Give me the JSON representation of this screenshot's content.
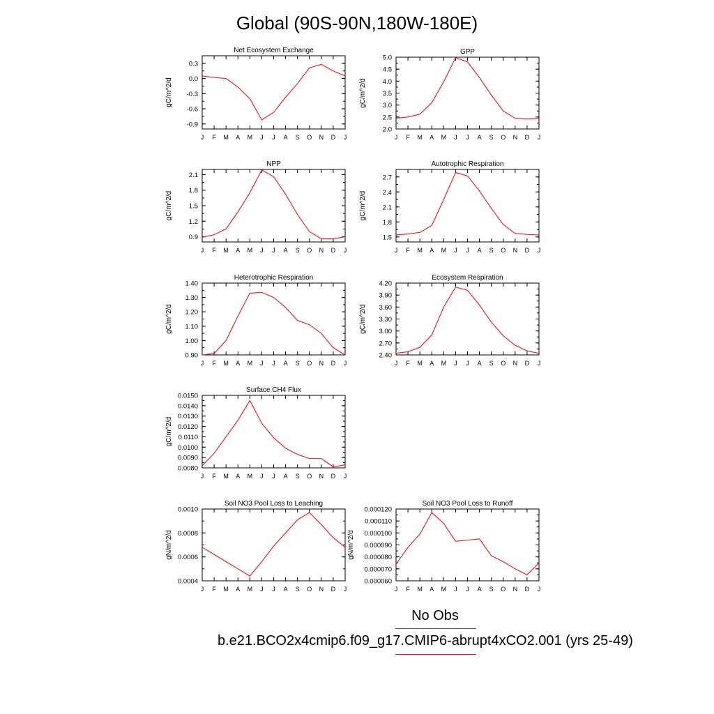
{
  "page": {
    "title": "Global (90S-90N,180W-180E)"
  },
  "legend": {
    "items": [
      {
        "label": "No Obs",
        "color": "#4444ee"
      },
      {
        "label": "b.e21.BCO2x4cmip6.f09_g17.CMIP6-abrupt4xCO2.001 (yrs 25-49)",
        "color": "#ee1111"
      }
    ]
  },
  "chart_data": [
    {
      "type": "line",
      "title": "Net Ecosystem Exchange",
      "ylabel": "gC/m^2/d",
      "categories": [
        "J",
        "F",
        "M",
        "A",
        "M",
        "J",
        "J",
        "A",
        "S",
        "O",
        "N",
        "D",
        "J"
      ],
      "ylim": [
        -1.0,
        0.45
      ],
      "yticks": [
        "0.3",
        "0.0",
        "-0.3",
        "-0.6",
        "-0.9"
      ],
      "series": [
        {
          "color": "#ee1111",
          "values": [
            0.05,
            0.02,
            0.0,
            -0.17,
            -0.4,
            -0.82,
            -0.67,
            -0.37,
            -0.1,
            0.21,
            0.28,
            0.15,
            0.05
          ]
        }
      ]
    },
    {
      "type": "line",
      "title": "GPP",
      "ylabel": "gC/m^2/d",
      "categories": [
        "J",
        "F",
        "M",
        "A",
        "M",
        "J",
        "J",
        "A",
        "S",
        "O",
        "N",
        "D",
        "J"
      ],
      "ylim": [
        2.0,
        5.0
      ],
      "yticks": [
        "5.0",
        "4.5",
        "4.0",
        "3.5",
        "3.0",
        "2.5",
        "2.0"
      ],
      "series": [
        {
          "color": "#ee1111",
          "values": [
            2.45,
            2.5,
            2.62,
            3.1,
            3.97,
            4.98,
            4.8,
            4.15,
            3.42,
            2.75,
            2.45,
            2.42,
            2.45
          ]
        }
      ]
    },
    {
      "type": "line",
      "title": "NPP",
      "ylabel": "gC/m^2/d",
      "categories": [
        "J",
        "F",
        "M",
        "A",
        "M",
        "J",
        "J",
        "A",
        "S",
        "O",
        "N",
        "D",
        "J"
      ],
      "ylim": [
        0.8,
        2.2
      ],
      "yticks": [
        "2.1",
        "1.8",
        "1.5",
        "1.2",
        "0.9"
      ],
      "series": [
        {
          "color": "#ee1111",
          "values": [
            0.89,
            0.94,
            1.05,
            1.38,
            1.75,
            2.19,
            2.06,
            1.72,
            1.33,
            1.0,
            0.86,
            0.86,
            0.9
          ]
        }
      ]
    },
    {
      "type": "line",
      "title": "Autotrophic Respiration",
      "ylabel": "gC/m^2/d",
      "categories": [
        "J",
        "F",
        "M",
        "A",
        "M",
        "J",
        "J",
        "A",
        "S",
        "O",
        "N",
        "D",
        "J"
      ],
      "ylim": [
        1.4,
        2.85
      ],
      "yticks": [
        "2.7",
        "2.4",
        "2.1",
        "1.8",
        "1.5"
      ],
      "series": [
        {
          "color": "#ee1111",
          "values": [
            1.54,
            1.56,
            1.59,
            1.73,
            2.25,
            2.79,
            2.72,
            2.42,
            2.07,
            1.75,
            1.57,
            1.55,
            1.54
          ]
        }
      ]
    },
    {
      "type": "line",
      "title": "Heterotrophic Respiration",
      "ylabel": "gC/m^2/d",
      "categories": [
        "J",
        "F",
        "M",
        "A",
        "M",
        "J",
        "J",
        "A",
        "S",
        "O",
        "N",
        "D",
        "J"
      ],
      "ylim": [
        0.9,
        1.4
      ],
      "yticks": [
        "1.40",
        "1.30",
        "1.20",
        "1.10",
        "1.00",
        "0.90"
      ],
      "series": [
        {
          "color": "#ee1111",
          "values": [
            0.9,
            0.91,
            1.0,
            1.17,
            1.33,
            1.335,
            1.3,
            1.23,
            1.14,
            1.11,
            1.05,
            0.95,
            0.9
          ]
        }
      ]
    },
    {
      "type": "line",
      "title": "Ecosystem Respiration",
      "ylabel": "gC/m^2/d",
      "categories": [
        "J",
        "F",
        "M",
        "A",
        "M",
        "J",
        "J",
        "A",
        "S",
        "O",
        "N",
        "D",
        "J"
      ],
      "ylim": [
        2.4,
        4.2
      ],
      "yticks": [
        "4.20",
        "3.90",
        "3.60",
        "3.30",
        "3.00",
        "2.70",
        "2.40"
      ],
      "series": [
        {
          "color": "#ee1111",
          "values": [
            2.44,
            2.48,
            2.59,
            2.9,
            3.6,
            4.1,
            4.02,
            3.65,
            3.22,
            2.88,
            2.64,
            2.5,
            2.44
          ]
        }
      ]
    },
    {
      "type": "line",
      "title": "Surface CH4 Flux",
      "ylabel": "gC/m^2/d",
      "categories": [
        "J",
        "F",
        "M",
        "A",
        "M",
        "J",
        "J",
        "A",
        "S",
        "O",
        "N",
        "D",
        "J"
      ],
      "ylim": [
        0.008,
        0.015
      ],
      "yticks": [
        "0.0150",
        "0.0140",
        "0.0130",
        "0.0120",
        "0.0110",
        "0.0100",
        "0.0090",
        "0.0080"
      ],
      "series": [
        {
          "color": "#ee1111",
          "values": [
            0.0082,
            0.0094,
            0.011,
            0.0126,
            0.0145,
            0.0123,
            0.0109,
            0.0099,
            0.0093,
            0.0089,
            0.0089,
            0.0081,
            0.0083
          ]
        }
      ]
    },
    {
      "type": "line",
      "title": "Soil NO3 Pool Loss to Leaching",
      "ylabel": "gN/m^2/d",
      "categories": [
        "J",
        "F",
        "M",
        "A",
        "M",
        "J",
        "J",
        "A",
        "S",
        "O",
        "N",
        "D",
        "J"
      ],
      "ylim": [
        0.0004,
        0.001
      ],
      "yticks": [
        "0.0010",
        "0.0008",
        "0.0006",
        "0.0004"
      ],
      "series": [
        {
          "color": "#ee1111",
          "values": [
            0.00068,
            0.00062,
            0.00056,
            0.0005,
            0.00044,
            0.00056,
            0.00069,
            0.0008,
            0.00091,
            0.00097,
            0.00087,
            0.00076,
            0.00068
          ]
        }
      ]
    },
    {
      "type": "line",
      "title": "Soil NO3 Pool Loss to Runoff",
      "ylabel": "gN/m^2/d",
      "categories": [
        "J",
        "F",
        "M",
        "A",
        "M",
        "J",
        "J",
        "A",
        "S",
        "O",
        "N",
        "D",
        "J"
      ],
      "ylim": [
        6e-05,
        0.00012
      ],
      "yticks": [
        "0.000120",
        "0.000110",
        "0.000100",
        "0.000090",
        "0.000080",
        "0.000070",
        "0.000060"
      ],
      "series": [
        {
          "color": "#ee1111",
          "values": [
            7.4e-05,
            8.8e-05,
            9.9e-05,
            0.000117,
            0.000108,
            9.3e-05,
            9.4e-05,
            9.5e-05,
            8.1e-05,
            7.6e-05,
            7e-05,
            6.5e-05,
            7.5e-05
          ]
        }
      ]
    }
  ]
}
